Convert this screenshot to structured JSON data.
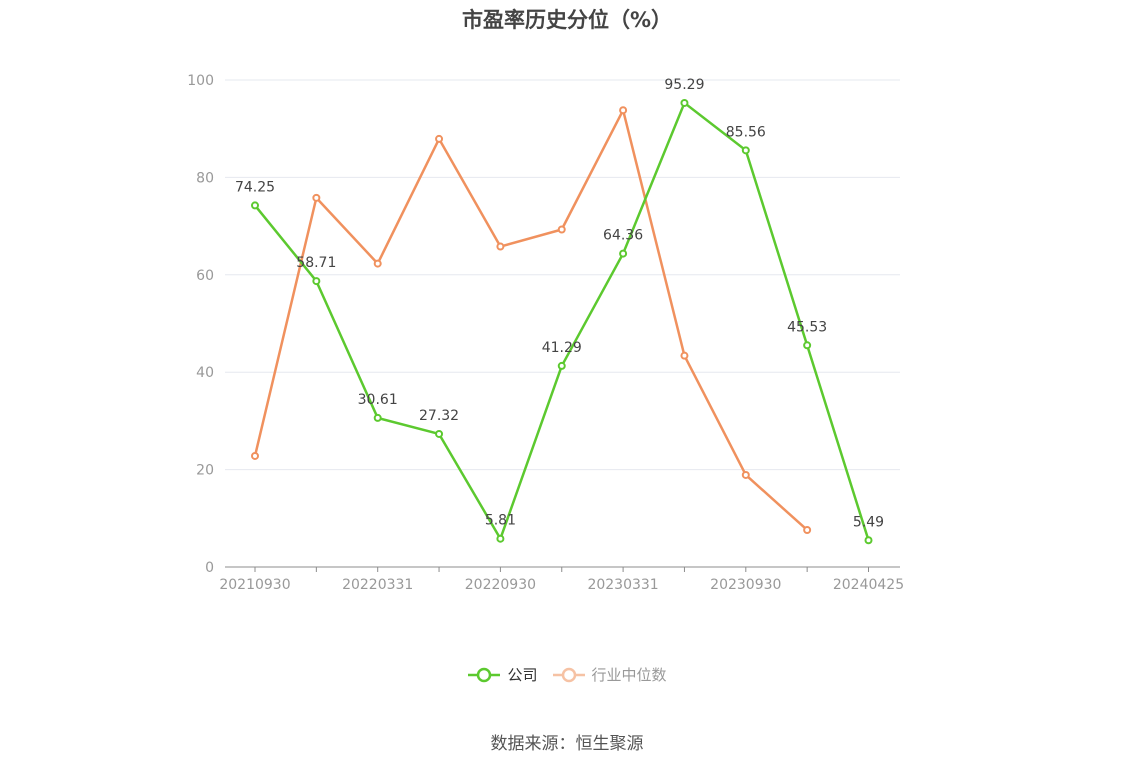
{
  "chart_data": {
    "type": "line",
    "title": "市盈率历史分位（%）",
    "x_tick_labels": [
      "20210930",
      "20220331",
      "20220930",
      "20230331",
      "20230930",
      "20240425"
    ],
    "y_ticks": [
      0,
      20,
      40,
      60,
      80,
      100
    ],
    "ylim": [
      0,
      100
    ],
    "grid": true,
    "legend_position": "bottom",
    "series": [
      {
        "name": "公司",
        "color": "#5cc92f",
        "values": [
          74.25,
          58.71,
          30.61,
          27.32,
          5.81,
          41.29,
          64.36,
          95.29,
          85.56,
          45.53,
          5.49
        ],
        "labels": [
          "74.25",
          "58.71",
          "30.61",
          "27.32",
          "5.81",
          "41.29",
          "64.36",
          "95.29",
          "85.56",
          "45.53",
          "5.49"
        ]
      },
      {
        "name": "行业中位数",
        "color": "#f0915e",
        "values": [
          22.8,
          75.8,
          62.3,
          87.9,
          65.8,
          69.3,
          93.8,
          43.4,
          18.9,
          7.6,
          null
        ]
      }
    ]
  },
  "source": "数据来源：恒生聚源"
}
